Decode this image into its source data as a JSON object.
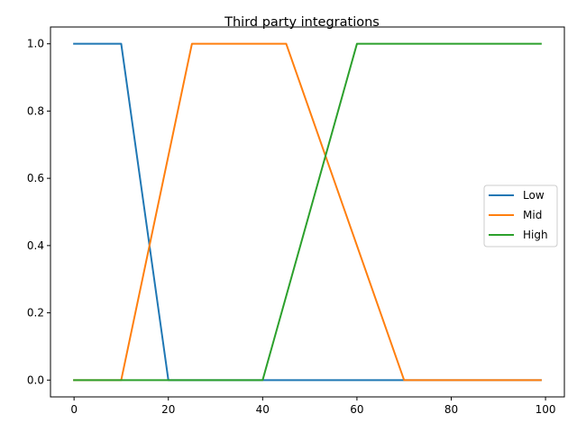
{
  "chart_data": {
    "type": "line",
    "title": "Third party integrations",
    "xlabel": "",
    "ylabel": "",
    "xlim": [
      -5,
      104
    ],
    "ylim": [
      -0.05,
      1.05
    ],
    "x_ticks": [
      0,
      20,
      40,
      60,
      80,
      100
    ],
    "y_ticks": [
      0.0,
      0.2,
      0.4,
      0.6,
      0.8,
      1.0
    ],
    "x_tick_labels": [
      "0",
      "20",
      "40",
      "60",
      "80",
      "100"
    ],
    "y_tick_labels": [
      "0.0",
      "0.2",
      "0.4",
      "0.6",
      "0.8",
      "1.0"
    ],
    "grid": false,
    "legend_position": "center-right",
    "series": [
      {
        "name": "Low",
        "color": "#1f77b4",
        "x": [
          0,
          10,
          20,
          99
        ],
        "y": [
          1,
          1,
          0,
          0
        ]
      },
      {
        "name": "Mid",
        "color": "#ff7f0e",
        "x": [
          0,
          10,
          25,
          45,
          70,
          99
        ],
        "y": [
          0,
          0,
          1,
          1,
          0,
          0
        ]
      },
      {
        "name": "High",
        "color": "#2ca02c",
        "x": [
          0,
          40,
          60,
          99
        ],
        "y": [
          0,
          0,
          1,
          1
        ]
      }
    ]
  }
}
